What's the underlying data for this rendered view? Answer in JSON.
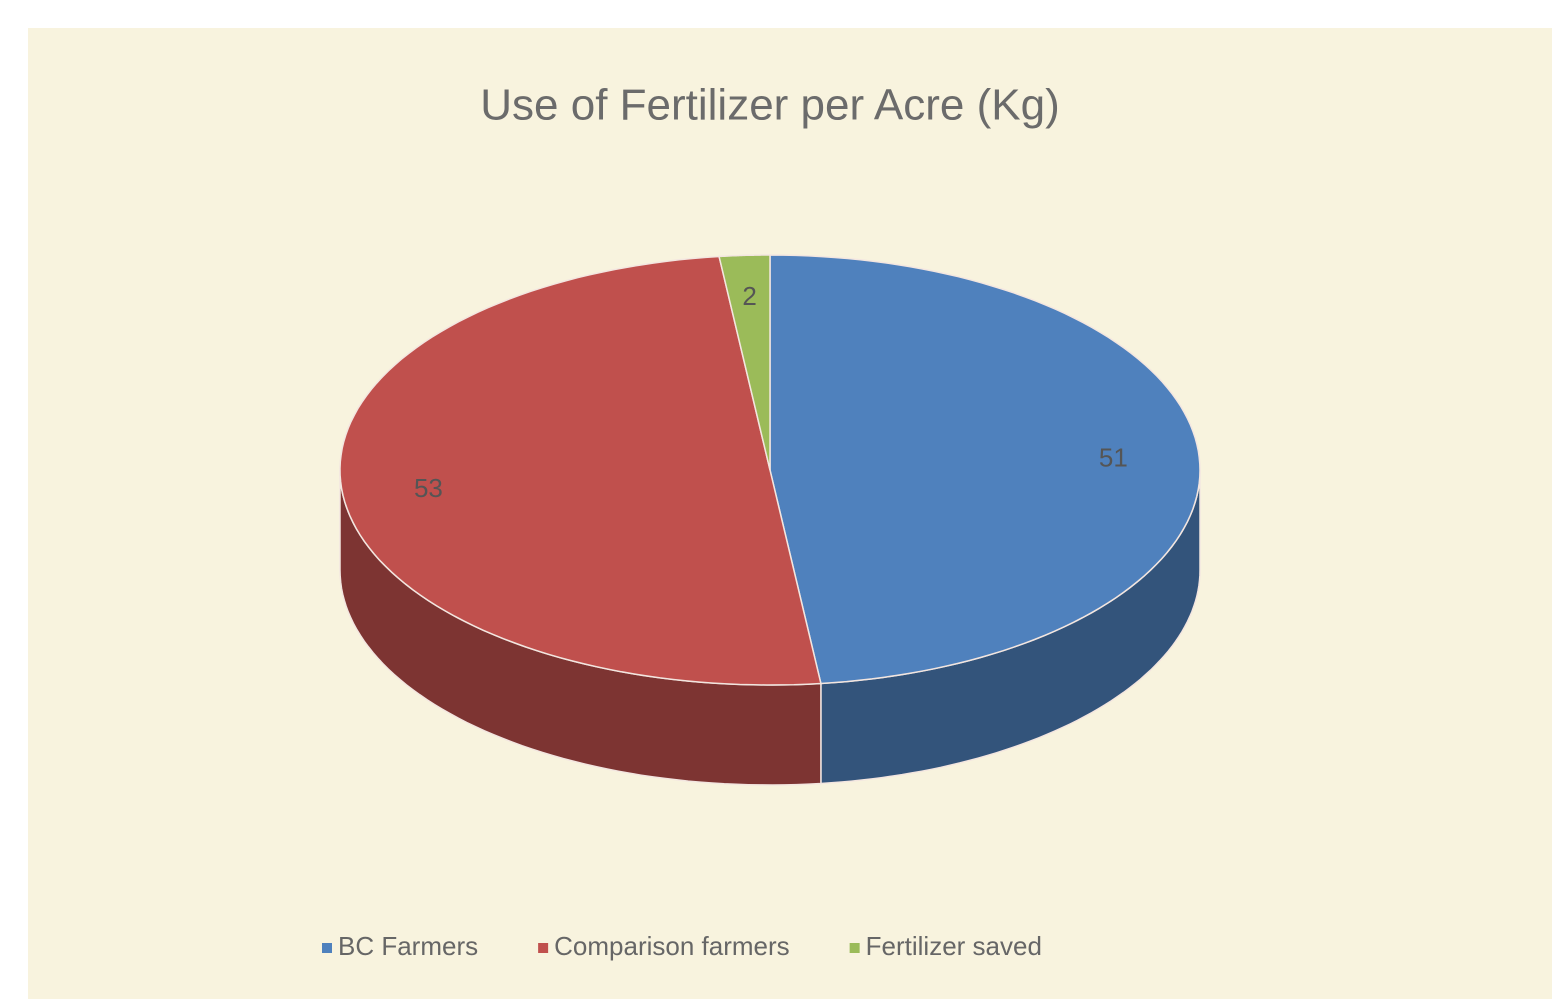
{
  "chart_data": {
    "type": "pie3d",
    "title": "Use of Fertilizer per Acre (Kg)",
    "categories": [
      "BC Farmers",
      "Comparison farmers",
      "Fertilizer saved"
    ],
    "values": [
      51,
      53,
      2
    ],
    "colors": [
      "#4f81bd",
      "#c0504d",
      "#9bbb59"
    ],
    "legend": "bottom"
  }
}
